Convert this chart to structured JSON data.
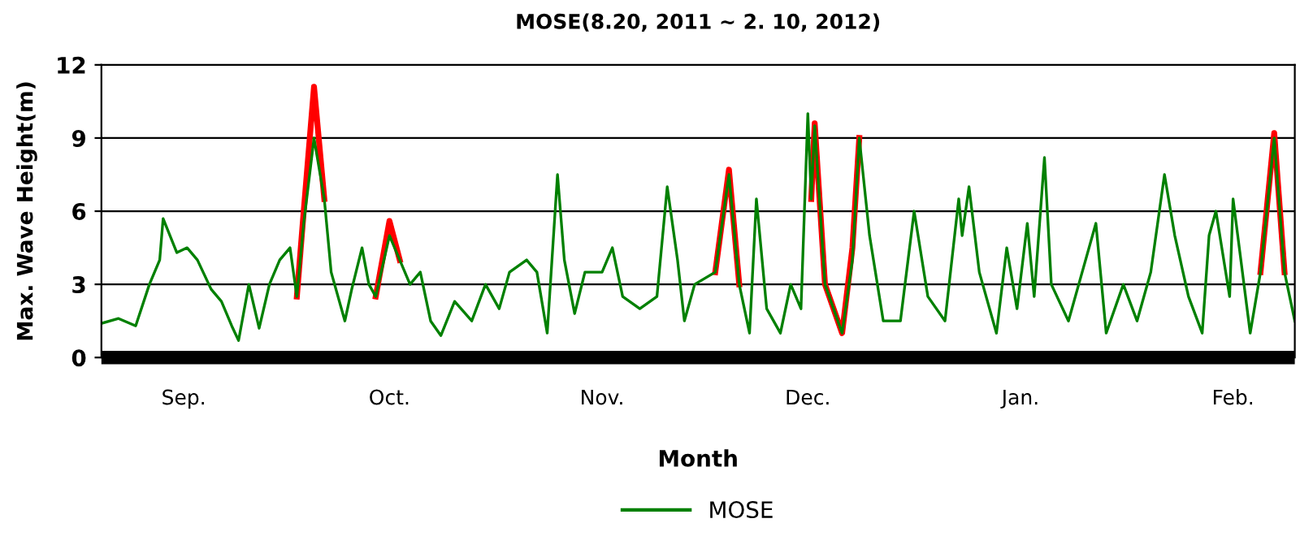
{
  "chart_data": {
    "type": "line",
    "title": "MOSE(8.20, 2011 ~ 2. 10, 2012)",
    "xlabel": "Month",
    "ylabel": "Max. Wave Height(m)",
    "x": [
      "2011-08-20T00:00",
      "2011-08-22T12:00",
      "2011-08-25T00:00",
      "2011-08-27T00:00",
      "2011-08-28T12:00",
      "2011-08-29T00:00",
      "2011-08-31T00:00",
      "2011-09-01T12:00",
      "2011-09-03T00:00",
      "2011-09-05T00:00",
      "2011-09-06T12:00",
      "2011-09-08T00:00",
      "2011-09-09T00:00",
      "2011-09-10T12:00",
      "2011-09-12T00:00",
      "2011-09-13T12:00",
      "2011-09-15T00:00",
      "2011-09-16T12:00",
      "2011-09-17T12:00",
      "2011-09-18T12:00",
      "2011-09-20T00:00",
      "2011-09-21T12:00",
      "2011-09-22T12:00",
      "2011-09-24T12:00",
      "2011-09-25T12:00",
      "2011-09-27T00:00",
      "2011-09-28T00:00",
      "2011-09-29T00:00",
      "2011-10-01T00:00",
      "2011-10-02T12:00",
      "2011-10-04T00:00",
      "2011-10-05T12:00",
      "2011-10-07T00:00",
      "2011-10-08T12:00",
      "2011-10-10T12:00",
      "2011-10-13T00:00",
      "2011-10-15T00:00",
      "2011-10-17T00:00",
      "2011-10-18T12:00",
      "2011-10-21T00:00",
      "2011-10-22T12:00",
      "2011-10-24T00:00",
      "2011-10-25T12:00",
      "2011-10-26T12:00",
      "2011-10-28T00:00",
      "2011-10-29T12:00",
      "2011-11-01T00:00",
      "2011-11-02T12:00",
      "2011-11-04T00:00",
      "2011-11-06T12:00",
      "2011-11-09T00:00",
      "2011-11-10T12:00",
      "2011-11-12T00:00",
      "2011-11-13T00:00",
      "2011-11-14T12:00",
      "2011-11-17T12:00",
      "2011-11-19T12:00",
      "2011-11-21T00:00",
      "2011-11-22T12:00",
      "2011-11-23T12:00",
      "2011-11-25T00:00",
      "2011-11-27T00:00",
      "2011-11-28T12:00",
      "2011-11-30T00:00",
      "2011-12-01T00:00",
      "2011-12-01T12:00",
      "2011-12-02T00:00",
      "2011-12-03T12:00",
      "2011-12-06T00:00",
      "2011-12-07T12:00",
      "2011-12-08T12:00",
      "2011-12-10T00:00",
      "2011-12-12T00:00",
      "2011-12-14T12:00",
      "2011-12-16T12:00",
      "2011-12-18T12:00",
      "2011-12-21T00:00",
      "2011-12-23T00:00",
      "2011-12-23T12:00",
      "2011-12-24T12:00",
      "2011-12-26T00:00",
      "2011-12-28T12:00",
      "2011-12-30T00:00",
      "2011-12-31T12:00",
      "2012-01-02T00:00",
      "2012-01-03T00:00",
      "2012-01-04T12:00",
      "2012-01-05T12:00",
      "2012-01-08T00:00",
      "2012-01-09T12:00",
      "2012-01-12T00:00",
      "2012-01-13T12:00",
      "2012-01-16T00:00",
      "2012-01-18T00:00",
      "2012-01-20T00:00",
      "2012-01-22T00:00",
      "2012-01-23T12:00",
      "2012-01-25T12:00",
      "2012-01-27T12:00",
      "2012-01-28T12:00",
      "2012-01-29T12:00",
      "2012-01-31T12:00",
      "2012-02-01T00:00",
      "2012-02-03T12:00",
      "2012-02-05T00:00",
      "2012-02-07T00:00",
      "2012-02-08T12:00",
      "2012-02-10T00:00"
    ],
    "series": [
      {
        "color": "#ff0000",
        "values": [
          null,
          null,
          null,
          null,
          null,
          null,
          null,
          null,
          null,
          null,
          null,
          null,
          null,
          null,
          null,
          null,
          null,
          null,
          2.5,
          6.0,
          11.1,
          6.5,
          null,
          null,
          null,
          null,
          null,
          2.5,
          5.6,
          4.0,
          null,
          null,
          null,
          null,
          null,
          null,
          null,
          null,
          null,
          null,
          null,
          null,
          null,
          null,
          null,
          null,
          null,
          null,
          null,
          null,
          null,
          null,
          null,
          null,
          null,
          3.5,
          7.7,
          3.0,
          null,
          null,
          null,
          null,
          null,
          null,
          null,
          6.5,
          9.6,
          3.0,
          1.0,
          4.5,
          9.0,
          null,
          null,
          null,
          null,
          null,
          null,
          null,
          null,
          null,
          null,
          null,
          null,
          null,
          null,
          null,
          null,
          null,
          null,
          null,
          null,
          null,
          null,
          null,
          null,
          null,
          null,
          null,
          null,
          null,
          null,
          null,
          null,
          null,
          3.5,
          9.2,
          3.5,
          null
        ]
      },
      {
        "name": "MOSE",
        "color": "#008000",
        "values": [
          1.4,
          1.6,
          1.3,
          3.0,
          4.0,
          5.7,
          4.3,
          4.5,
          4.0,
          2.8,
          2.3,
          1.3,
          0.7,
          3.0,
          1.2,
          3.0,
          4.0,
          4.5,
          2.5,
          5.5,
          9.0,
          6.5,
          3.5,
          1.5,
          2.8,
          4.5,
          3.0,
          2.5,
          5.0,
          4.0,
          3.0,
          3.5,
          1.5,
          0.9,
          2.3,
          1.5,
          3.0,
          2.0,
          3.5,
          4.0,
          3.5,
          1.0,
          7.5,
          4.0,
          1.8,
          3.5,
          3.5,
          4.5,
          2.5,
          2.0,
          2.5,
          7.0,
          4.0,
          1.5,
          3.0,
          3.5,
          7.5,
          3.0,
          1.0,
          6.5,
          2.0,
          1.0,
          3.0,
          2.0,
          10.0,
          6.5,
          9.5,
          3.0,
          1.0,
          4.0,
          9.0,
          5.0,
          1.5,
          1.5,
          6.0,
          2.5,
          1.5,
          6.5,
          5.0,
          7.0,
          3.5,
          1.0,
          4.5,
          2.0,
          5.5,
          2.5,
          8.2,
          3.0,
          1.5,
          3.0,
          5.5,
          1.0,
          3.0,
          1.5,
          3.5,
          7.5,
          5.0,
          2.5,
          1.0,
          5.0,
          6.0,
          2.5,
          6.5,
          1.0,
          3.5,
          9.0,
          3.5,
          1.5
        ]
      }
    ],
    "xlim": [
      "2011-08-20",
      "2012-02-10"
    ],
    "xticks": [
      {
        "value": "2011-09-01",
        "label": "Sep."
      },
      {
        "value": "2011-10-01",
        "label": "Oct."
      },
      {
        "value": "2011-11-01",
        "label": "Nov."
      },
      {
        "value": "2011-12-01",
        "label": "Dec."
      },
      {
        "value": "2012-01-01",
        "label": "Jan."
      },
      {
        "value": "2012-02-01",
        "label": "Feb."
      }
    ],
    "ylim": [
      0,
      12
    ],
    "yticks": [
      0,
      3,
      6,
      9,
      12
    ],
    "grid": "y",
    "legend": "bottom",
    "marker": "none",
    "line_style": "solid"
  }
}
